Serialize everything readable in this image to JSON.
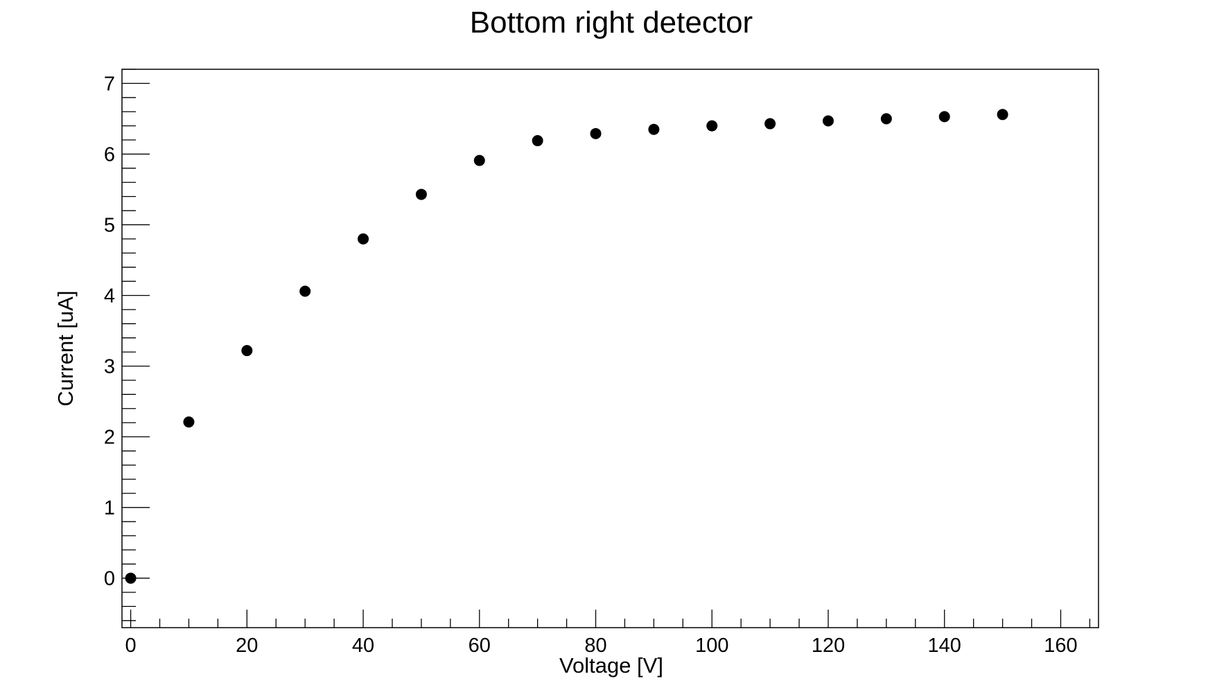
{
  "chart_data": {
    "type": "scatter",
    "title": "Bottom right detector",
    "xlabel": "Voltage [V]",
    "ylabel": "Current [uA]",
    "xlim": [
      -1.5,
      166.5
    ],
    "ylim": [
      -0.7,
      7.2
    ],
    "xticks": [
      0,
      20,
      40,
      60,
      80,
      100,
      120,
      140,
      160
    ],
    "yticks": [
      0,
      1,
      2,
      3,
      4,
      5,
      6,
      7
    ],
    "grid": false,
    "marker_color": "#000000",
    "series": [
      {
        "x": [
          0,
          10,
          20,
          30,
          40,
          50,
          60,
          70,
          80,
          90,
          100,
          110,
          120,
          130,
          140,
          150
        ],
        "y": [
          0.0,
          2.21,
          3.22,
          4.06,
          4.8,
          5.43,
          5.91,
          6.19,
          6.29,
          6.35,
          6.4,
          6.43,
          6.47,
          6.5,
          6.53,
          6.56
        ]
      }
    ]
  }
}
